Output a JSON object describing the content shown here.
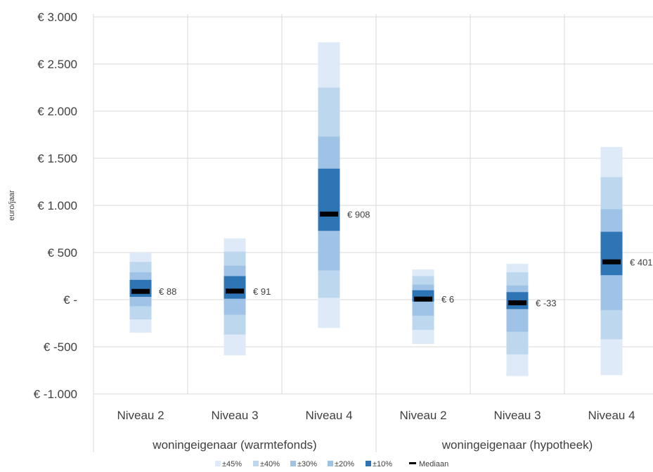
{
  "chart_data": {
    "type": "bar",
    "title": "",
    "ylabel": "euro/jaar",
    "ylim": [
      -1000,
      3000
    ],
    "y_ticks": [
      {
        "value": 3000,
        "label": "€ 3.000"
      },
      {
        "value": 2500,
        "label": "€ 2.500"
      },
      {
        "value": 2000,
        "label": "€ 2.000"
      },
      {
        "value": 1500,
        "label": "€ 1.500"
      },
      {
        "value": 1000,
        "label": "€ 1.000"
      },
      {
        "value": 500,
        "label": "€ 500"
      },
      {
        "value": 0,
        "label": "€ -"
      },
      {
        "value": -500,
        "label": "€ -500"
      },
      {
        "value": -1000,
        "label": "€ -1.000"
      }
    ],
    "grid": true,
    "legend_position": "bottom",
    "groups": [
      {
        "label": "woningeigenaar (warmtefonds)",
        "categories": [
          "Niveau 2",
          "Niveau 3",
          "Niveau 4"
        ]
      },
      {
        "label": "woningeigenaar (hypotheek)",
        "categories": [
          "Niveau 2",
          "Niveau 3",
          "Niveau 4"
        ]
      }
    ],
    "bands": [
      {
        "name": "±45%",
        "color": "#deeaf7"
      },
      {
        "name": "±40%",
        "color": "#bdd7ee"
      },
      {
        "name": "±30%",
        "color": "#9fc3e7"
      },
      {
        "name": "±20%",
        "color": "#9dc3e6"
      },
      {
        "name": "±10%",
        "color": "#2e75b6"
      }
    ],
    "median_legend": "Mediaan",
    "median_color": "#000000",
    "boxes": [
      {
        "group": 0,
        "category": "Niveau 2",
        "median": 88,
        "label": "€ 88",
        "layers": [
          [
            -350,
            500,
            0
          ],
          [
            -210,
            400,
            1
          ],
          [
            -70,
            290,
            2
          ],
          [
            30,
            210,
            4
          ]
        ]
      },
      {
        "group": 0,
        "category": "Niveau 3",
        "median": 91,
        "label": "€ 91",
        "layers": [
          [
            -590,
            650,
            0
          ],
          [
            -370,
            510,
            1
          ],
          [
            -160,
            360,
            2
          ],
          [
            10,
            250,
            4
          ]
        ]
      },
      {
        "group": 0,
        "category": "Niveau 4",
        "median": 908,
        "label": "€ 908",
        "layers": [
          [
            -300,
            2730,
            0
          ],
          [
            20,
            2250,
            1
          ],
          [
            310,
            1730,
            2
          ],
          [
            730,
            1390,
            4
          ]
        ]
      },
      {
        "group": 1,
        "category": "Niveau 2",
        "median": 6,
        "label": "€ 6",
        "layers": [
          [
            -470,
            320,
            0
          ],
          [
            -320,
            250,
            1
          ],
          [
            -170,
            160,
            2
          ],
          [
            -20,
            100,
            4
          ]
        ]
      },
      {
        "group": 1,
        "category": "Niveau 3",
        "median": -33,
        "label": "€ -33",
        "layers": [
          [
            -810,
            380,
            0
          ],
          [
            -580,
            290,
            1
          ],
          [
            -340,
            150,
            2
          ],
          [
            -100,
            80,
            4
          ]
        ]
      },
      {
        "group": 1,
        "category": "Niveau 4",
        "median": 401,
        "label": "€ 401",
        "layers": [
          [
            -800,
            1620,
            0
          ],
          [
            -420,
            1300,
            1
          ],
          [
            -110,
            960,
            2
          ],
          [
            260,
            720,
            4
          ]
        ]
      }
    ]
  }
}
